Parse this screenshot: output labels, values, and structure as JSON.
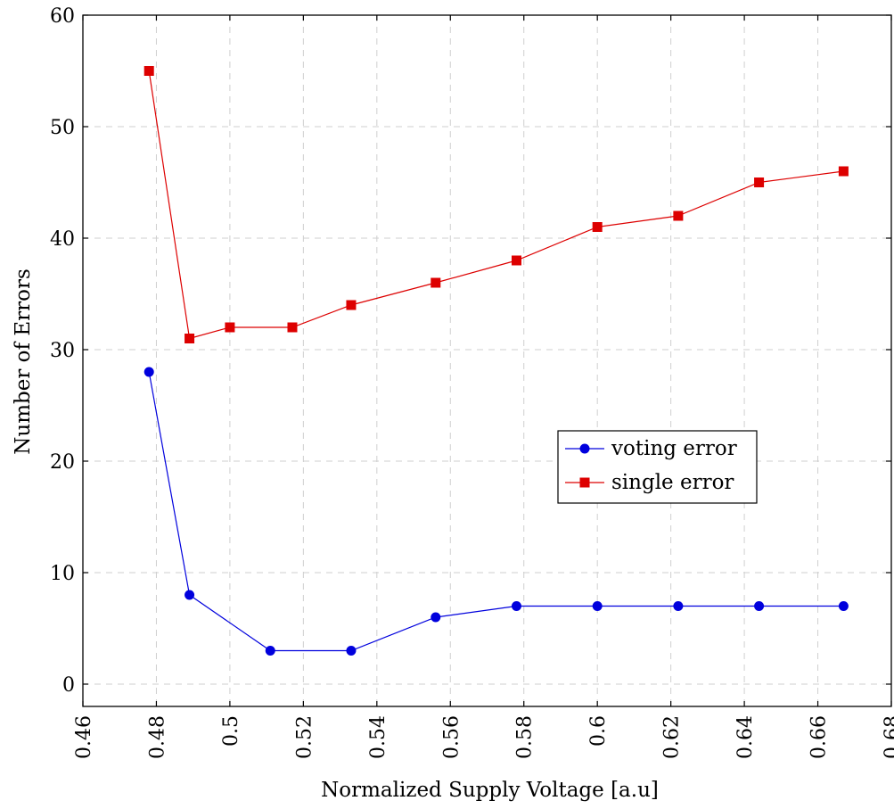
{
  "chart_data": {
    "type": "line",
    "title": "",
    "xlabel": "Normalized Supply Voltage [a.u]",
    "ylabel": "Number of Errors",
    "xlim": [
      0.46,
      0.68
    ],
    "ylim": [
      -2,
      60
    ],
    "xticks": [
      {
        "value": 0.46,
        "label": "0.46"
      },
      {
        "value": 0.48,
        "label": "0.48"
      },
      {
        "value": 0.5,
        "label": "0.5"
      },
      {
        "value": 0.52,
        "label": "0.52"
      },
      {
        "value": 0.54,
        "label": "0.54"
      },
      {
        "value": 0.56,
        "label": "0.56"
      },
      {
        "value": 0.58,
        "label": "0.58"
      },
      {
        "value": 0.6,
        "label": "0.6"
      },
      {
        "value": 0.62,
        "label": "0.62"
      },
      {
        "value": 0.64,
        "label": "0.64"
      },
      {
        "value": 0.66,
        "label": "0.66"
      },
      {
        "value": 0.68,
        "label": "0.68"
      }
    ],
    "yticks": [
      {
        "value": 0,
        "label": "0"
      },
      {
        "value": 10,
        "label": "10"
      },
      {
        "value": 20,
        "label": "20"
      },
      {
        "value": 30,
        "label": "30"
      },
      {
        "value": 40,
        "label": "40"
      },
      {
        "value": 50,
        "label": "50"
      },
      {
        "value": 60,
        "label": "60"
      }
    ],
    "grid": true,
    "legend_position": "right-middle",
    "x": [
      0.478,
      0.489,
      0.5,
      0.511,
      0.517,
      0.533,
      0.556,
      0.578,
      0.6,
      0.622,
      0.644,
      0.667
    ],
    "series": [
      {
        "name": "voting error",
        "color": "#0000dd",
        "marker": "circle",
        "points": [
          {
            "x": 0.478,
            "y": 28
          },
          {
            "x": 0.489,
            "y": 8
          },
          {
            "x": 0.511,
            "y": 3
          },
          {
            "x": 0.533,
            "y": 3
          },
          {
            "x": 0.556,
            "y": 6
          },
          {
            "x": 0.578,
            "y": 7
          },
          {
            "x": 0.6,
            "y": 7
          },
          {
            "x": 0.622,
            "y": 7
          },
          {
            "x": 0.644,
            "y": 7
          },
          {
            "x": 0.667,
            "y": 7
          }
        ]
      },
      {
        "name": "single error",
        "color": "#dd0000",
        "marker": "square",
        "points": [
          {
            "x": 0.478,
            "y": 55
          },
          {
            "x": 0.489,
            "y": 31
          },
          {
            "x": 0.5,
            "y": 32
          },
          {
            "x": 0.517,
            "y": 32
          },
          {
            "x": 0.533,
            "y": 34
          },
          {
            "x": 0.556,
            "y": 36
          },
          {
            "x": 0.578,
            "y": 38
          },
          {
            "x": 0.6,
            "y": 41
          },
          {
            "x": 0.622,
            "y": 42
          },
          {
            "x": 0.644,
            "y": 45
          },
          {
            "x": 0.667,
            "y": 46
          }
        ]
      }
    ]
  }
}
